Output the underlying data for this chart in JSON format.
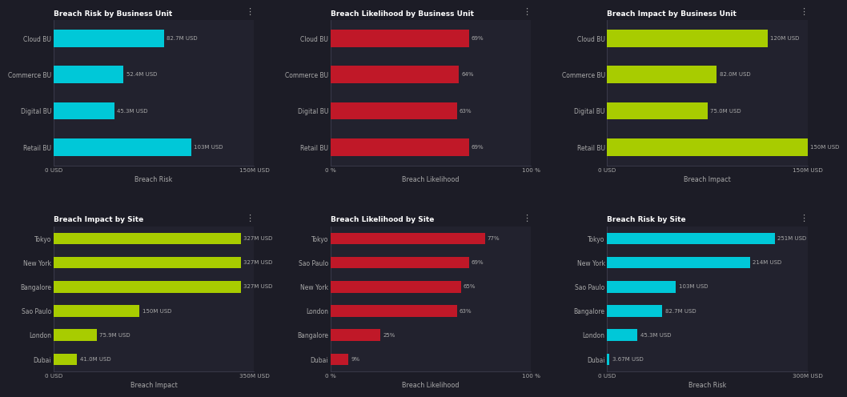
{
  "background_color": "#1c1c26",
  "panel_bg": "#22222e",
  "text_color": "#aaaaaa",
  "title_color": "#ffffff",
  "spine_color": "#444455",
  "panels": [
    {
      "title": "Breach Risk by Business Unit",
      "xlabel": "Breach Risk",
      "xlim_max": 150,
      "xtick_labels": [
        "0 USD",
        "150M USD"
      ],
      "categories": [
        "Cloud BU",
        "Commerce BU",
        "Digital BU",
        "Retail BU"
      ],
      "values": [
        82.7,
        52.4,
        45.3,
        103
      ],
      "bar_color": "#00c8d8",
      "value_labels": [
        "82.7M USD",
        "52.4M USD",
        "45.3M USD",
        "103M USD"
      ]
    },
    {
      "title": "Breach Likelihood by Business Unit",
      "xlabel": "Breach Likelihood",
      "xlim_max": 100,
      "xtick_labels": [
        "0 %",
        "100 %"
      ],
      "categories": [
        "Cloud BU",
        "Commerce BU",
        "Digital BU",
        "Retail BU"
      ],
      "values": [
        69,
        64,
        63,
        69
      ],
      "bar_color": "#c01828",
      "value_labels": [
        "69%",
        "64%",
        "63%",
        "69%"
      ]
    },
    {
      "title": "Breach Impact by Business Unit",
      "xlabel": "Breach Impact",
      "xlim_max": 150,
      "xtick_labels": [
        "0 USD",
        "150M USD"
      ],
      "categories": [
        "Cloud BU",
        "Commerce BU",
        "Digital BU",
        "Retail BU"
      ],
      "values": [
        120,
        82.0,
        75.0,
        150
      ],
      "bar_color": "#a8cc00",
      "value_labels": [
        "120M USD",
        "82.0M USD",
        "75.0M USD",
        "150M USD"
      ]
    },
    {
      "title": "Breach Impact by Site",
      "xlabel": "Breach Impact",
      "xlim_max": 350,
      "xtick_labels": [
        "0 USD",
        "350M USD"
      ],
      "categories": [
        "Tokyo",
        "New York",
        "Bangalore",
        "Sao Paulo",
        "London",
        "Dubai"
      ],
      "values": [
        327,
        327,
        327,
        150,
        75.9,
        41.0
      ],
      "bar_color": "#a8cc00",
      "value_labels": [
        "327M USD",
        "327M USD",
        "327M USD",
        "150M USD",
        "75.9M USD",
        "41.0M USD"
      ]
    },
    {
      "title": "Breach Likelihood by Site",
      "xlabel": "Breach Likelihood",
      "xlim_max": 100,
      "xtick_labels": [
        "0 %",
        "100 %"
      ],
      "categories": [
        "Tokyo",
        "Sao Paulo",
        "New York",
        "London",
        "Bangalore",
        "Dubai"
      ],
      "values": [
        77,
        69,
        65,
        63,
        25,
        9
      ],
      "bar_color": "#c01828",
      "value_labels": [
        "77%",
        "69%",
        "65%",
        "63%",
        "25%",
        "9%"
      ]
    },
    {
      "title": "Breach Risk by Site",
      "xlabel": "Breach Risk",
      "xlim_max": 300,
      "xtick_labels": [
        "0 USD",
        "300M USD"
      ],
      "categories": [
        "Tokyo",
        "New York",
        "Sao Paulo",
        "Bangalore",
        "London",
        "Dubai"
      ],
      "values": [
        251,
        214,
        103,
        82.7,
        45.3,
        3.67
      ],
      "bar_color": "#00c8d8",
      "value_labels": [
        "251M USD",
        "214M USD",
        "103M USD",
        "82.7M USD",
        "45.3M USD",
        "3.67M USD"
      ]
    }
  ]
}
